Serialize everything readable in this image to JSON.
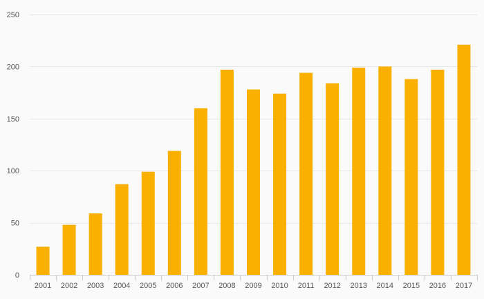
{
  "chart_data": {
    "type": "bar",
    "categories": [
      "2001",
      "2002",
      "2003",
      "2004",
      "2005",
      "2006",
      "2007",
      "2008",
      "2009",
      "2010",
      "2011",
      "2012",
      "2013",
      "2014",
      "2015",
      "2016",
      "2017"
    ],
    "values": [
      27,
      48,
      59,
      87,
      99,
      119,
      160,
      197,
      178,
      174,
      194,
      184,
      199,
      200,
      188,
      197,
      221
    ],
    "title": "",
    "xlabel": "",
    "ylabel": "",
    "ylim": [
      0,
      250
    ],
    "yticks": [
      0,
      50,
      100,
      150,
      200,
      250
    ],
    "grid": true,
    "legend": "none",
    "colors": {
      "bar": "#f9b000",
      "grid": "#e6e6e6",
      "axis": "#cccccc",
      "background": "#fafafa"
    }
  }
}
